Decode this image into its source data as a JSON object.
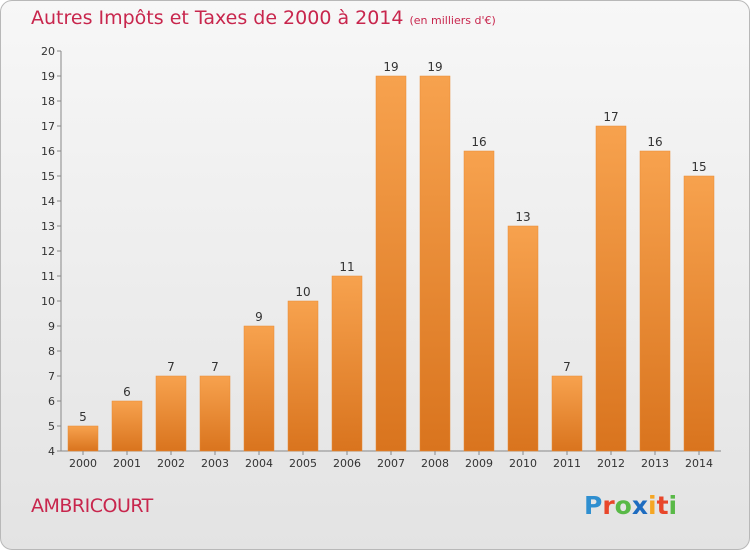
{
  "title": {
    "main": "Autres Impôts et Taxes de 2000 à 2014",
    "unit": "(en milliers d'€)"
  },
  "commune": "AMBRICOURT",
  "logo": {
    "letters": [
      {
        "ch": "P",
        "color": "#2f8fd0"
      },
      {
        "ch": "r",
        "color": "#e8462a"
      },
      {
        "ch": "o",
        "color": "#59b947"
      },
      {
        "ch": "x",
        "color": "#1e6cc0"
      },
      {
        "ch": "i",
        "color": "#f5a623"
      },
      {
        "ch": "t",
        "color": "#e8462a"
      },
      {
        "ch": "i",
        "color": "#59b947"
      }
    ]
  },
  "colors": {
    "bar_light": "#f7a24e",
    "bar_dark": "#d9741e",
    "title": "#c8264d",
    "axis": "#888888"
  },
  "chart_data": {
    "type": "bar",
    "categories": [
      "2000",
      "2001",
      "2002",
      "2003",
      "2004",
      "2005",
      "2006",
      "2007",
      "2008",
      "2009",
      "2010",
      "2011",
      "2012",
      "2013",
      "2014"
    ],
    "values": [
      5,
      6,
      7,
      7,
      9,
      10,
      11,
      19,
      19,
      16,
      13,
      7,
      17,
      16,
      15
    ],
    "ylim": [
      4,
      20
    ],
    "yticks": [
      4,
      5,
      6,
      7,
      8,
      9,
      10,
      11,
      12,
      13,
      14,
      15,
      16,
      17,
      18,
      19,
      20
    ],
    "grid": false,
    "legend": "none"
  }
}
